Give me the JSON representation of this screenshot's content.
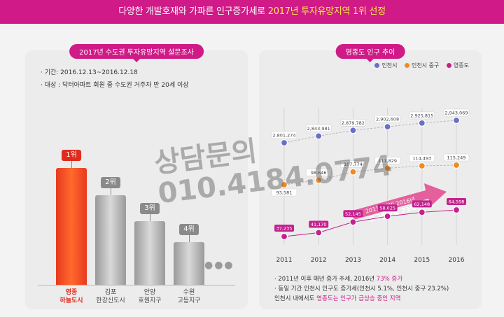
{
  "header": {
    "title_prefix": "다양한 개발호재와 가파른 인구증가세로 ",
    "title_highlight": "2017년 투자유망지역 1위 선정"
  },
  "survey": {
    "pill": "2017년 수도권 투자유망지역 설문조사",
    "period": "· 기간: 2016.12.13~2016.12.18",
    "target": "· 대상 : 닥터아파트 회원 중 수도권 거주자 만 20세 이상",
    "bars": [
      {
        "rank": "1위",
        "line1": "영종",
        "line2": "하늘도시",
        "level": 1.0
      },
      {
        "rank": "2위",
        "line1": "김포",
        "line2": "한강신도시",
        "level": 0.77
      },
      {
        "rank": "3위",
        "line1": "안양",
        "line2": "호원지구",
        "level": 0.55
      },
      {
        "rank": "4위",
        "line1": "수원",
        "line2": "고등지구",
        "level": 0.37
      }
    ],
    "more": "●●●"
  },
  "population": {
    "pill": "영종도 인구 추이",
    "legend": [
      "인천시",
      "인천시 중구",
      "영종도"
    ],
    "colors": {
      "incheon": "#6a6fc8",
      "junggu": "#f08a24",
      "yeongjong": "#c3228e"
    },
    "growth_line1": "2011년대비 2016년",
    "growth_line2": "인구증가율 73%",
    "notes": {
      "n1_prefix": "· 2011년 이후 매년 증가 추세, 2016년 ",
      "n1_highlight": "73% 증가",
      "n2": "· 동일 기간 인천시 인구도 증가세(인천시 5.1%, 인천시 중구 23.2%)",
      "n3_prefix": "  인천시 내에서도 ",
      "n3_highlight": "영종도는 인구가 급상승 중인 지역"
    }
  },
  "watermark": {
    "line1": "상담문의",
    "line2": "010.4184.0774"
  },
  "chart_data": {
    "type": "line",
    "categories": [
      "2011",
      "2012",
      "2013",
      "2014",
      "2015",
      "2016"
    ],
    "series": [
      {
        "name": "인천시",
        "values": [
          2801274,
          2843981,
          2879782,
          2902608,
          2925815,
          2943069
        ],
        "labels": [
          "2,801,274",
          "2,843,981",
          "2,879,782",
          "2,902,608",
          "2,925,815",
          "2,943,069"
        ]
      },
      {
        "name": "인천시 중구",
        "values": [
          93581,
          98646,
          107774,
          111829,
          114493,
          115249
        ],
        "labels": [
          "93,581",
          "98,646",
          "107,774",
          "111,829",
          "114,493",
          "115,249"
        ]
      },
      {
        "name": "영종도",
        "values": [
          37235,
          41170,
          52145,
          58025,
          62148,
          64598
        ],
        "labels": [
          "37,235",
          "41,170",
          "52,145",
          "58,025",
          "62,148",
          "64,598"
        ]
      }
    ]
  }
}
